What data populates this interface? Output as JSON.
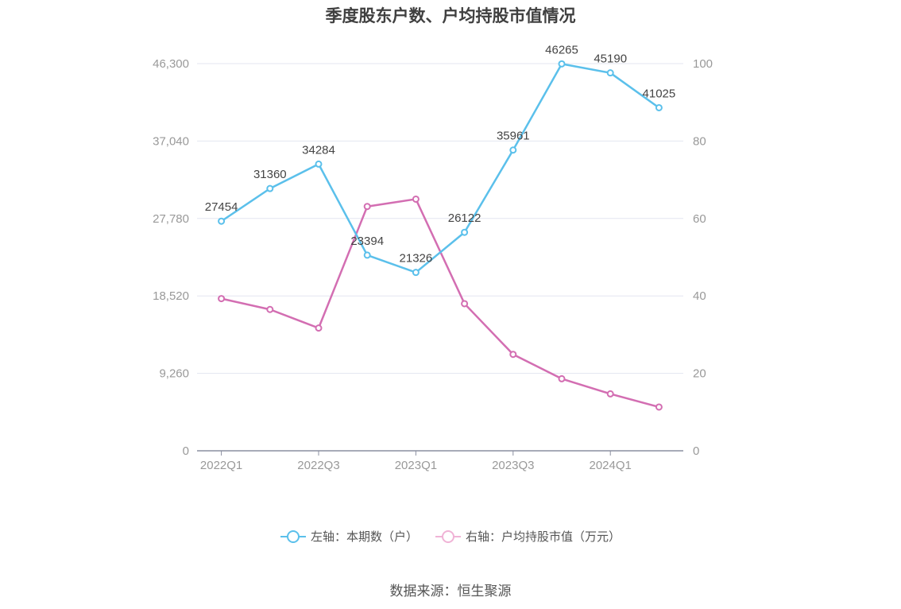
{
  "chart_data": {
    "type": "line",
    "title": "季度股东户数、户均持股市值情况",
    "categories": [
      "2022Q1",
      "2022Q2",
      "2022Q3",
      "2022Q4",
      "2023Q1",
      "2023Q2",
      "2023Q3",
      "2023Q4",
      "2024Q1",
      "2024Q2"
    ],
    "x_tick_labels": [
      "2022Q1",
      "2022Q3",
      "2023Q1",
      "2023Q3",
      "2024Q1"
    ],
    "y_left": {
      "ticks": [
        "0",
        "9,260",
        "18,520",
        "27,780",
        "37,040",
        "46,300"
      ],
      "min": 0,
      "max": 46300
    },
    "y_right": {
      "ticks": [
        "0",
        "20",
        "40",
        "60",
        "80",
        "100"
      ],
      "min": 0,
      "max": 100
    },
    "grid": true,
    "legend_position": "bottom",
    "series": [
      {
        "name": "左轴：本期数（户）",
        "axis": "left",
        "color": "#5bc0eb",
        "values": [
          27454,
          31360,
          34284,
          23394,
          21326,
          26122,
          35961,
          46265,
          45190,
          41025
        ],
        "labels": [
          "27454",
          "31360",
          "34284",
          "23394",
          "21326",
          "26122",
          "35961",
          "46265",
          "45190",
          "41025"
        ]
      },
      {
        "name": "右轴：户均持股市值（万元）",
        "axis": "right",
        "color": "#d36eb2",
        "values": [
          39.3,
          36.5,
          31.7,
          63.1,
          65.0,
          38.0,
          24.9,
          18.6,
          14.7,
          11.3
        ]
      }
    ]
  },
  "source": "数据来源：恒生聚源"
}
